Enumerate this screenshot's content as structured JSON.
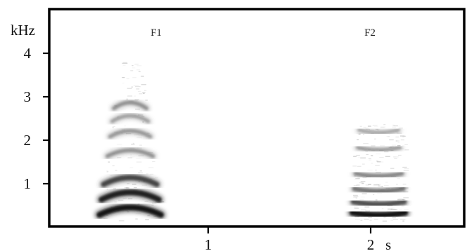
{
  "chart_data": {
    "type": "heatmap",
    "title": "",
    "xlabel": "",
    "ylabel": "",
    "y_unit": "kHz",
    "x_unit": "s",
    "ylim": [
      0,
      4.6
    ],
    "xlim": [
      -0.45,
      2.55
    ],
    "y_ticks": [
      {
        "value": 1,
        "label": "1"
      },
      {
        "value": 2,
        "label": "2"
      },
      {
        "value": 3,
        "label": "3"
      },
      {
        "value": 4,
        "label": "4"
      }
    ],
    "x_ticks": [
      {
        "value": 1,
        "label": "1"
      },
      {
        "value": 2,
        "label": "2"
      }
    ],
    "grid": false,
    "colormap": "grayscale (dark = high energy)",
    "series": [
      {
        "name": "F1",
        "time": [
          0.32,
          0.72
        ],
        "center_time": 0.52,
        "band_freqs_khz": [
          0.3,
          0.65,
          1.0,
          1.65,
          2.1,
          2.45,
          2.75
        ],
        "band_intensity": [
          1.0,
          0.95,
          0.8,
          0.45,
          0.42,
          0.38,
          0.45
        ],
        "band_arch": "convex"
      },
      {
        "name": "F2",
        "time": [
          1.88,
          2.22
        ],
        "center_time": 2.05,
        "band_freqs_khz": [
          0.35,
          0.6,
          0.9,
          1.25,
          1.85,
          2.25
        ],
        "band_intensity": [
          1.0,
          0.75,
          0.6,
          0.5,
          0.4,
          0.35
        ],
        "band_arch": "concave"
      }
    ]
  }
}
